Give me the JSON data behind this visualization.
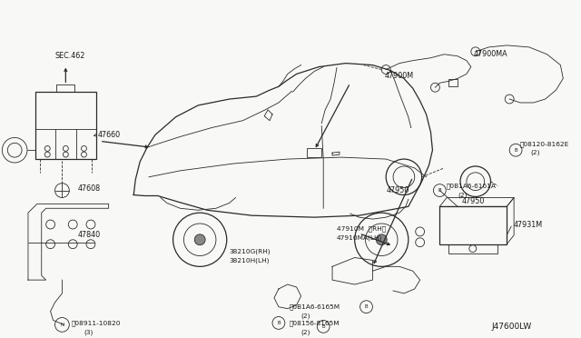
{
  "background_color": "#f8f8f6",
  "fig_width": 6.4,
  "fig_height": 3.72,
  "dpi": 100,
  "line_color": "#2a2a2a",
  "text_color": "#1a1a1a",
  "parts": {
    "sec462_text": "SEC.462",
    "part_47660": "47660",
    "part_47608": "47608",
    "part_47840": "47840",
    "bolt_08911": "ⓝ08911-10820",
    "bolt_08911_qty": "(3)",
    "part_47910m": "47910M 〈RH〉",
    "part_47910ma": "47910MA(LH)",
    "part_38210g": "38210G(RH)",
    "part_38210h": "38210H(LH)",
    "bolt_0b1a6_6165m": "Ⓒ0B1A6-6165M",
    "bolt_0b1a6_6165m_qty": "(2)",
    "bolt_08156": "Ⓒ08156-8165M",
    "bolt_08156_qty": "(2)",
    "part_47900m": "47900M",
    "part_47900ma": "47900MA",
    "bolt_08120": "Ⓒ08120-8162E",
    "bolt_08120_qty": "(2)",
    "part_47950a": "47950",
    "part_47950b": "47950",
    "bolt_0b1a6_6161a": "Ⓒ0B1A6-6161A",
    "bolt_0b1a6_6161a_qty": "(2)",
    "part_47931m": "47931M",
    "diagram_id": "J47600LW"
  }
}
